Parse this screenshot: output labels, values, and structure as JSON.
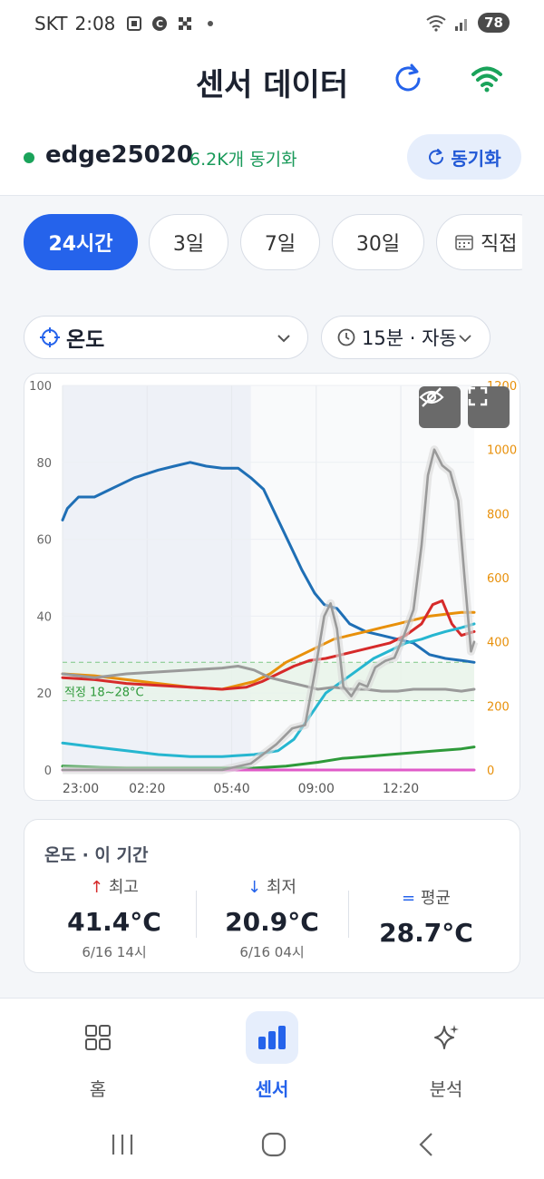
{
  "status_bar": {
    "carrier": "SKT",
    "time": "2:08",
    "battery": "78"
  },
  "header": {
    "title": "센서 데이터",
    "refresh_icon": "refresh-icon",
    "wifi_icon": "wifi-icon"
  },
  "device": {
    "name": "edge25020",
    "sync_status": "6.2K개 동기화",
    "sync_button": "동기화"
  },
  "range_chips": [
    {
      "label": "24시간",
      "active": true
    },
    {
      "label": "3일",
      "active": false
    },
    {
      "label": "7일",
      "active": false
    },
    {
      "label": "30일",
      "active": false
    },
    {
      "label": "직접",
      "active": false
    }
  ],
  "metric_select": {
    "value": "온도"
  },
  "interval_select": {
    "value": "15분 · 자동"
  },
  "chart_data": {
    "type": "line",
    "x": [
      "23:00",
      "02:20",
      "05:40",
      "09:00",
      "12:20"
    ],
    "y_left": {
      "ylim": [
        0,
        100
      ],
      "ticks": [
        "0",
        "20",
        "40",
        "60",
        "80",
        "100"
      ]
    },
    "y_right": {
      "ylim": [
        0,
        1200
      ],
      "ticks": [
        "0",
        "200",
        "400",
        "600",
        "800",
        "1000",
        "1200"
      ],
      "color": "#e8900a"
    },
    "band": {
      "label": "적정 18~28°C",
      "range": [
        18,
        28
      ],
      "color": "#2e9a3a"
    },
    "series": [
      {
        "color": "#1f6fb5",
        "axis": "left",
        "points": [
          [
            0,
            65
          ],
          [
            3,
            68
          ],
          [
            10,
            71
          ],
          [
            20,
            71
          ],
          [
            30,
            73
          ],
          [
            45,
            76
          ],
          [
            60,
            78
          ],
          [
            70,
            79
          ],
          [
            80,
            80
          ],
          [
            90,
            79
          ],
          [
            100,
            78.5
          ],
          [
            110,
            78.5
          ],
          [
            118,
            76
          ],
          [
            126,
            73
          ],
          [
            134,
            66
          ],
          [
            142,
            59
          ],
          [
            150,
            52
          ],
          [
            158,
            46
          ],
          [
            164,
            43
          ],
          [
            172,
            42
          ],
          [
            180,
            38
          ],
          [
            190,
            36
          ],
          [
            200,
            35
          ],
          [
            210,
            34
          ],
          [
            220,
            33
          ],
          [
            230,
            30
          ],
          [
            240,
            29
          ],
          [
            250,
            28.5
          ],
          [
            258,
            28
          ]
        ]
      },
      {
        "color": "#e8900a",
        "axis": "left",
        "points": [
          [
            0,
            25
          ],
          [
            20,
            24.5
          ],
          [
            40,
            23.5
          ],
          [
            60,
            22.5
          ],
          [
            80,
            21.5
          ],
          [
            100,
            21
          ],
          [
            110,
            22
          ],
          [
            120,
            23
          ],
          [
            130,
            25
          ],
          [
            140,
            28
          ],
          [
            150,
            30
          ],
          [
            160,
            32
          ],
          [
            170,
            34
          ],
          [
            180,
            35
          ],
          [
            190,
            36
          ],
          [
            200,
            37
          ],
          [
            210,
            38
          ],
          [
            220,
            39
          ],
          [
            230,
            40
          ],
          [
            240,
            40.5
          ],
          [
            250,
            41
          ],
          [
            258,
            41
          ]
        ]
      },
      {
        "color": "#d62a2a",
        "axis": "left",
        "points": [
          [
            0,
            24
          ],
          [
            20,
            23.5
          ],
          [
            40,
            22.5
          ],
          [
            60,
            22
          ],
          [
            80,
            21.5
          ],
          [
            100,
            21
          ],
          [
            115,
            21.5
          ],
          [
            125,
            23
          ],
          [
            135,
            25
          ],
          [
            145,
            27
          ],
          [
            155,
            28.5
          ],
          [
            165,
            29
          ],
          [
            175,
            30
          ],
          [
            185,
            31
          ],
          [
            195,
            32
          ],
          [
            205,
            33
          ],
          [
            215,
            35
          ],
          [
            225,
            38
          ],
          [
            232,
            43
          ],
          [
            238,
            44
          ],
          [
            244,
            38
          ],
          [
            250,
            35
          ],
          [
            258,
            36
          ]
        ]
      },
      {
        "color": "#26b6d0",
        "axis": "left",
        "points": [
          [
            0,
            7
          ],
          [
            20,
            6
          ],
          [
            40,
            5
          ],
          [
            60,
            4
          ],
          [
            80,
            3.5
          ],
          [
            100,
            3.5
          ],
          [
            120,
            4
          ],
          [
            135,
            5
          ],
          [
            145,
            8
          ],
          [
            155,
            14
          ],
          [
            165,
            20
          ],
          [
            175,
            23
          ],
          [
            185,
            26
          ],
          [
            195,
            29
          ],
          [
            205,
            31
          ],
          [
            215,
            33
          ],
          [
            225,
            34
          ],
          [
            232,
            35
          ],
          [
            240,
            36
          ],
          [
            250,
            37
          ],
          [
            258,
            38
          ]
        ]
      },
      {
        "color": "#2e9a3a",
        "axis": "left",
        "points": [
          [
            0,
            1
          ],
          [
            40,
            0.5
          ],
          [
            80,
            0.5
          ],
          [
            120,
            0.5
          ],
          [
            140,
            1
          ],
          [
            160,
            2
          ],
          [
            175,
            3
          ],
          [
            190,
            3.5
          ],
          [
            205,
            4
          ],
          [
            220,
            4.5
          ],
          [
            235,
            5
          ],
          [
            250,
            5.5
          ],
          [
            258,
            6
          ]
        ]
      },
      {
        "color": "#e05ac8",
        "axis": "left",
        "points": [
          [
            0,
            0
          ],
          [
            258,
            0
          ]
        ]
      },
      {
        "color": "#9a9a9a",
        "axis": "left",
        "points": [
          [
            0,
            25
          ],
          [
            20,
            24
          ],
          [
            40,
            25
          ],
          [
            60,
            25.5
          ],
          [
            80,
            26
          ],
          [
            100,
            26.5
          ],
          [
            110,
            27
          ],
          [
            120,
            26
          ],
          [
            130,
            24
          ],
          [
            140,
            23
          ],
          [
            150,
            22
          ],
          [
            160,
            21
          ],
          [
            170,
            21.5
          ],
          [
            180,
            21
          ],
          [
            190,
            21
          ],
          [
            200,
            20.5
          ],
          [
            210,
            20.5
          ],
          [
            220,
            21
          ],
          [
            230,
            21
          ],
          [
            240,
            21
          ],
          [
            250,
            20.5
          ],
          [
            258,
            21
          ]
        ]
      },
      {
        "color": "#9a9a9a",
        "axis": "right",
        "points": [
          [
            0,
            0
          ],
          [
            100,
            0
          ],
          [
            118,
            20
          ],
          [
            126,
            50
          ],
          [
            134,
            80
          ],
          [
            144,
            130
          ],
          [
            152,
            140
          ],
          [
            158,
            300
          ],
          [
            164,
            480
          ],
          [
            168,
            520
          ],
          [
            172,
            440
          ],
          [
            176,
            260
          ],
          [
            181,
            230
          ],
          [
            186,
            270
          ],
          [
            191,
            260
          ],
          [
            196,
            320
          ],
          [
            202,
            340
          ],
          [
            208,
            350
          ],
          [
            214,
            420
          ],
          [
            220,
            500
          ],
          [
            225,
            700
          ],
          [
            229,
            920
          ],
          [
            233,
            1000
          ],
          [
            238,
            950
          ],
          [
            243,
            930
          ],
          [
            248,
            840
          ],
          [
            252,
            600
          ],
          [
            256,
            370
          ],
          [
            258,
            400
          ]
        ]
      }
    ]
  },
  "stats": {
    "title": "온도 · 이 기간",
    "max": {
      "label": "최고",
      "value": "41.4°C",
      "sub": "6/16 14시"
    },
    "min": {
      "label": "최저",
      "value": "20.9°C",
      "sub": "6/16 04시"
    },
    "avg": {
      "label": "평균",
      "value": "28.7°C"
    }
  },
  "bottom_nav": [
    {
      "label": "홈",
      "active": false
    },
    {
      "label": "센서",
      "active": true
    },
    {
      "label": "분석",
      "active": false
    }
  ]
}
